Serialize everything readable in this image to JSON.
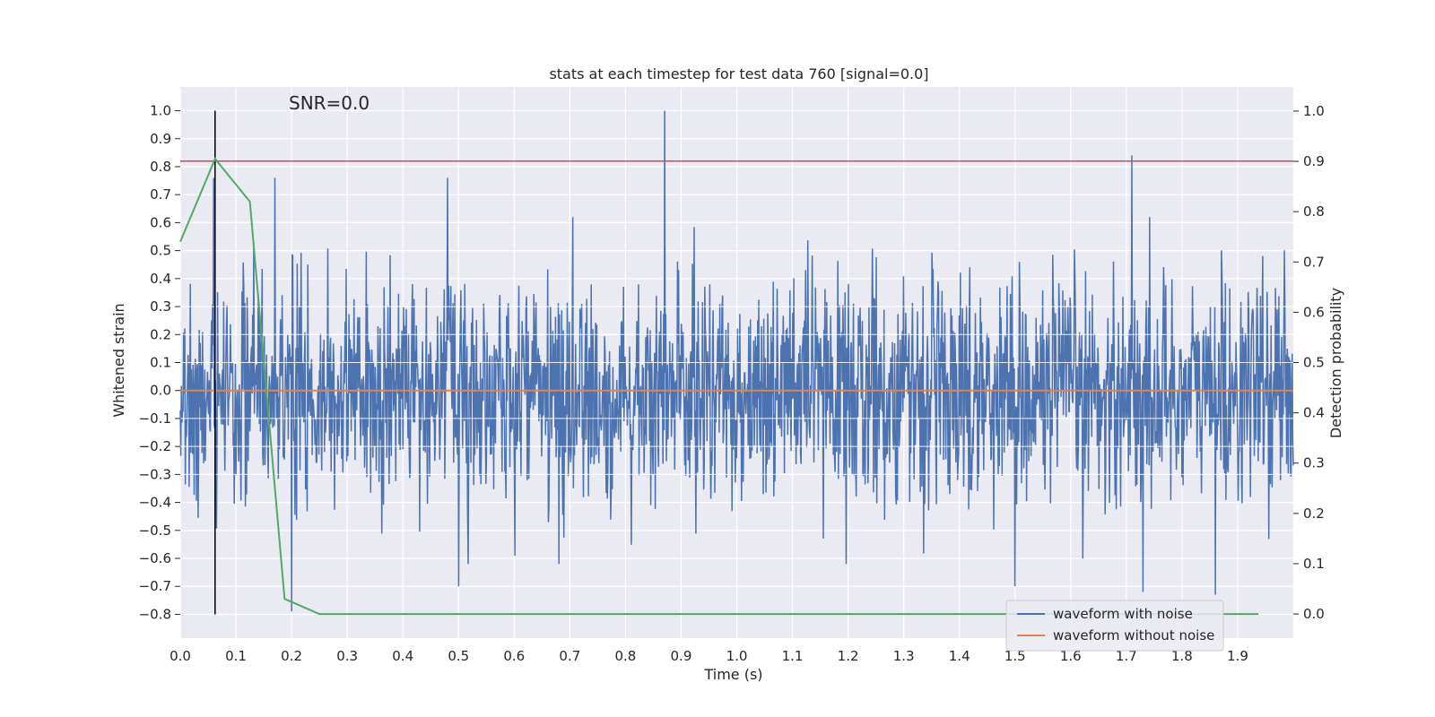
{
  "chart_data": {
    "type": "line",
    "title": "stats at each timestep for test data 760 [signal=0.0]",
    "xlabel": "Time (s)",
    "ylabel": "Whitened strain",
    "y2label": "Detection probability",
    "annotation": "SNR=0.0",
    "xlim": [
      0.0,
      2.0
    ],
    "ylim": [
      -0.885,
      1.085
    ],
    "y2lim": [
      -0.048,
      1.048
    ],
    "xticks": [
      0.0,
      0.1,
      0.2,
      0.3,
      0.4,
      0.5,
      0.6,
      0.7,
      0.8,
      0.9,
      1.0,
      1.1,
      1.2,
      1.3,
      1.4,
      1.5,
      1.6,
      1.7,
      1.8,
      1.9
    ],
    "yticks": [
      1.0,
      0.9,
      0.8,
      0.7,
      0.6,
      0.5,
      0.4,
      0.3,
      0.2,
      0.1,
      0.0,
      -0.1,
      -0.2,
      -0.3,
      -0.4,
      -0.5,
      -0.6,
      -0.7,
      -0.8
    ],
    "y2ticks": [
      1.0,
      0.9,
      0.8,
      0.7,
      0.6,
      0.5,
      0.4,
      0.3,
      0.2,
      0.1,
      0.0
    ],
    "grid": true,
    "legend_position": "lower-right",
    "series": [
      {
        "name": "waveform with noise",
        "color": "#4c72b0",
        "axis": "left",
        "noise": true,
        "x_range": [
          0.0,
          2.0
        ],
        "peaks": [
          [
            0.87,
            1.0
          ],
          [
            1.71,
            0.84
          ],
          [
            0.06,
            0.76
          ],
          [
            0.17,
            0.76
          ],
          [
            0.48,
            0.76
          ],
          [
            1.5,
            -0.7
          ],
          [
            1.73,
            -0.72
          ],
          [
            1.86,
            -0.73
          ],
          [
            0.2,
            -0.79
          ],
          [
            0.5,
            -0.7
          ]
        ]
      },
      {
        "name": "waveform without noise",
        "color": "#dd8452",
        "axis": "left",
        "x": [
          0.0,
          2.0
        ],
        "y": [
          0.0,
          0.0
        ]
      },
      {
        "name": "",
        "color": "#55a868",
        "axis": "right",
        "x": [
          0.0,
          0.0625,
          0.125,
          0.1875,
          0.25,
          0.3125,
          0.5,
          1.0,
          1.5,
          1.9375
        ],
        "y": [
          0.74,
          0.905,
          0.82,
          0.03,
          0.0,
          0.0,
          0.0,
          0.0,
          0.0,
          0.0
        ]
      }
    ],
    "threshold": {
      "value": 0.82,
      "axis": "left",
      "color": "#c44e52"
    },
    "marker_line": {
      "x": 0.0625,
      "y_from": -0.8,
      "y_to": 1.0,
      "color": "#000000"
    }
  }
}
